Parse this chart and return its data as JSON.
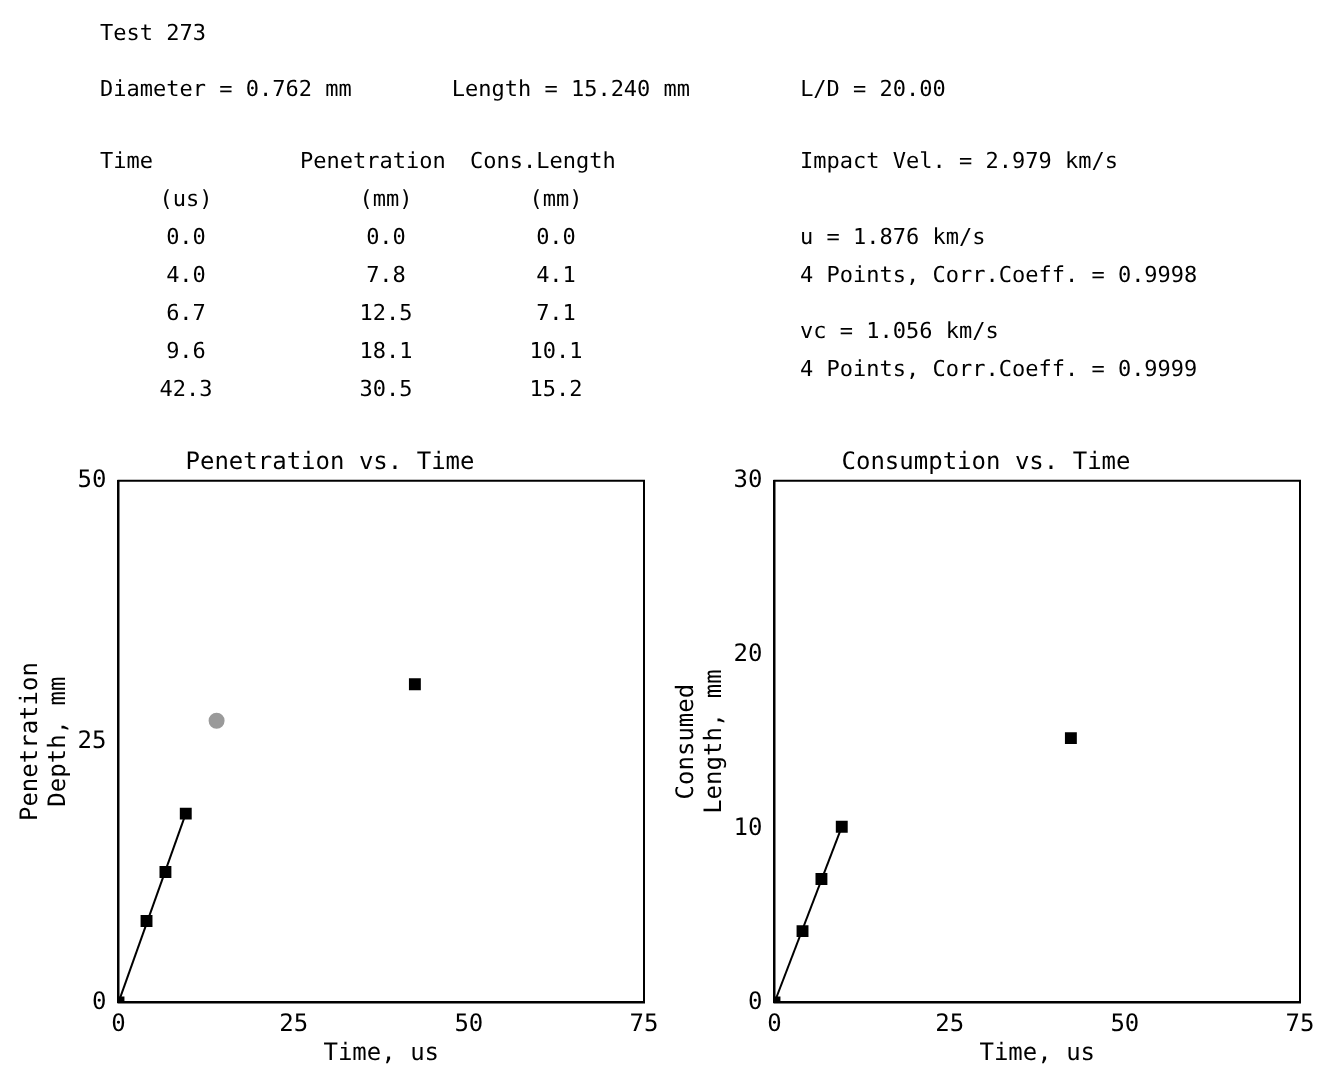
{
  "chart_data": [
    {
      "type": "other",
      "title": "Test 273",
      "annotations": [
        "Diameter = 0.762 mm",
        "Length = 15.240 mm",
        "L/D = 20.00",
        "Time",
        "Penetration",
        "Cons.Length",
        "(us)",
        "(mm)",
        "(mm)",
        "0.0",
        "0.0",
        "0.0",
        "4.0",
        "7.8",
        "4.1",
        "6.7",
        "12.5",
        "7.1",
        "9.6",
        "18.1",
        "10.1",
        "42.3",
        "30.5",
        "15.2",
        "Impact Vel. = 2.979 km/s",
        "u = 1.876 km/s",
        "4 Points, Corr.Coeff. = 0.9998",
        "vc = 1.056 km/s",
        "4 Points, Corr.Coeff. = 0.9999"
      ]
    },
    {
      "type": "scatter",
      "title": "Penetration vs. Time",
      "xlabel": "Time, us",
      "ylabel": "Penetration\nDepth, mm",
      "xlim": [
        0,
        75
      ],
      "xticks": [
        0,
        25,
        50,
        75
      ],
      "ylim": [
        0,
        50
      ],
      "yticks": [
        0,
        25,
        50
      ],
      "grid": false,
      "legend": false,
      "series": [
        {
          "type": "scatter",
          "marker": "square",
          "color": "#000000",
          "x": [
            0,
            4,
            6.7,
            9.6,
            42.3
          ],
          "values": [
            0,
            7.8,
            12.5,
            18.1,
            30.5
          ]
        },
        {
          "type": "line",
          "marker": "none",
          "color": "#000000",
          "x": [
            0,
            9.6
          ],
          "values": [
            0,
            18.1
          ]
        },
        {
          "type": "scatter",
          "marker": "circle",
          "color": "#9a9a9a",
          "x": [
            14
          ],
          "values": [
            27
          ]
        }
      ]
    },
    {
      "type": "scatter",
      "title": "Consumption vs. Time",
      "xlabel": "Time, us",
      "ylabel": "Consumed\nLength, mm",
      "xlim": [
        0,
        75
      ],
      "xticks": [
        0,
        25,
        50,
        75
      ],
      "ylim": [
        0,
        30
      ],
      "yticks": [
        0,
        10,
        20,
        30
      ],
      "grid": false,
      "legend": false,
      "series": [
        {
          "type": "scatter",
          "marker": "square",
          "color": "#000000",
          "x": [
            0,
            4,
            6.7,
            9.6,
            42.3
          ],
          "values": [
            0,
            4.1,
            7.1,
            10.1,
            15.2
          ]
        },
        {
          "type": "line",
          "marker": "none",
          "color": "#000000",
          "x": [
            0,
            9.6
          ],
          "values": [
            0,
            10.1
          ]
        }
      ]
    }
  ]
}
